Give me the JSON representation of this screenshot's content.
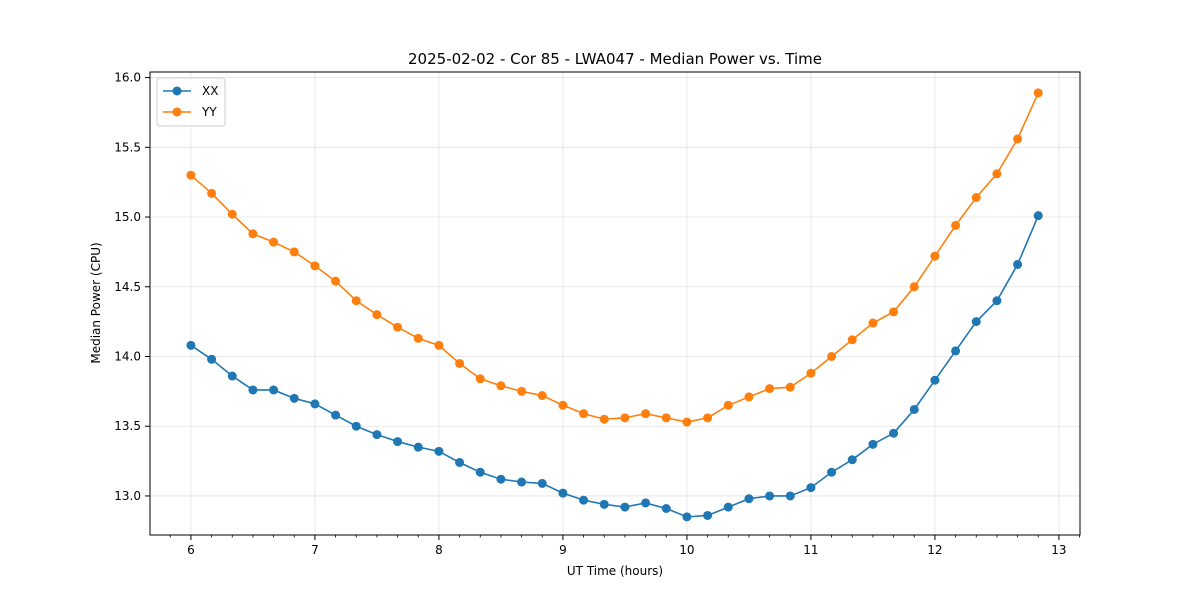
{
  "chart_data": {
    "type": "line",
    "title": "2025-02-02 - Cor 85 - LWA047 - Median Power vs. Time",
    "xlabel": "UT Time (hours)",
    "ylabel": "Median Power (CPU)",
    "xlim": [
      5.67,
      13.17
    ],
    "ylim": [
      12.72,
      16.04
    ],
    "xticks": [
      6,
      7,
      8,
      9,
      10,
      11,
      12,
      13
    ],
    "yticks": [
      13.0,
      13.5,
      14.0,
      14.5,
      15.0,
      15.5,
      16.0
    ],
    "ytick_labels": [
      "13.0",
      "13.5",
      "14.0",
      "14.5",
      "15.0",
      "15.5",
      "16.0"
    ],
    "grid": true,
    "legend_position": "top-left",
    "x": [
      6.0,
      6.1667,
      6.3333,
      6.5,
      6.6667,
      6.8333,
      7.0,
      7.1667,
      7.3333,
      7.5,
      7.6667,
      7.8333,
      8.0,
      8.1667,
      8.3333,
      8.5,
      8.6667,
      8.8333,
      9.0,
      9.1667,
      9.3333,
      9.5,
      9.6667,
      9.8333,
      10.0,
      10.1667,
      10.3333,
      10.5,
      10.6667,
      10.8333,
      11.0,
      11.1667,
      11.3333,
      11.5,
      11.6667,
      11.8333,
      12.0,
      12.1667,
      12.3333,
      12.5,
      12.6667,
      12.8333
    ],
    "series": [
      {
        "name": "XX",
        "color": "#1f77b4",
        "values": [
          14.08,
          13.98,
          13.86,
          13.76,
          13.76,
          13.7,
          13.66,
          13.58,
          13.5,
          13.44,
          13.39,
          13.35,
          13.32,
          13.24,
          13.17,
          13.12,
          13.1,
          13.09,
          13.02,
          12.97,
          12.94,
          12.92,
          12.95,
          12.91,
          12.85,
          12.86,
          12.92,
          12.98,
          13.0,
          13.0,
          13.06,
          13.17,
          13.26,
          13.37,
          13.45,
          13.62,
          13.83,
          14.04,
          14.25,
          14.4,
          14.66,
          15.01
        ]
      },
      {
        "name": "YY",
        "color": "#ff7f0e",
        "values": [
          15.3,
          15.17,
          15.02,
          14.88,
          14.82,
          14.75,
          14.65,
          14.54,
          14.4,
          14.3,
          14.21,
          14.13,
          14.08,
          13.95,
          13.84,
          13.79,
          13.75,
          13.72,
          13.65,
          13.59,
          13.55,
          13.56,
          13.59,
          13.56,
          13.53,
          13.56,
          13.65,
          13.71,
          13.77,
          13.78,
          13.88,
          14.0,
          14.12,
          14.24,
          14.32,
          14.5,
          14.72,
          14.94,
          15.14,
          15.31,
          15.56,
          15.89
        ]
      }
    ]
  }
}
